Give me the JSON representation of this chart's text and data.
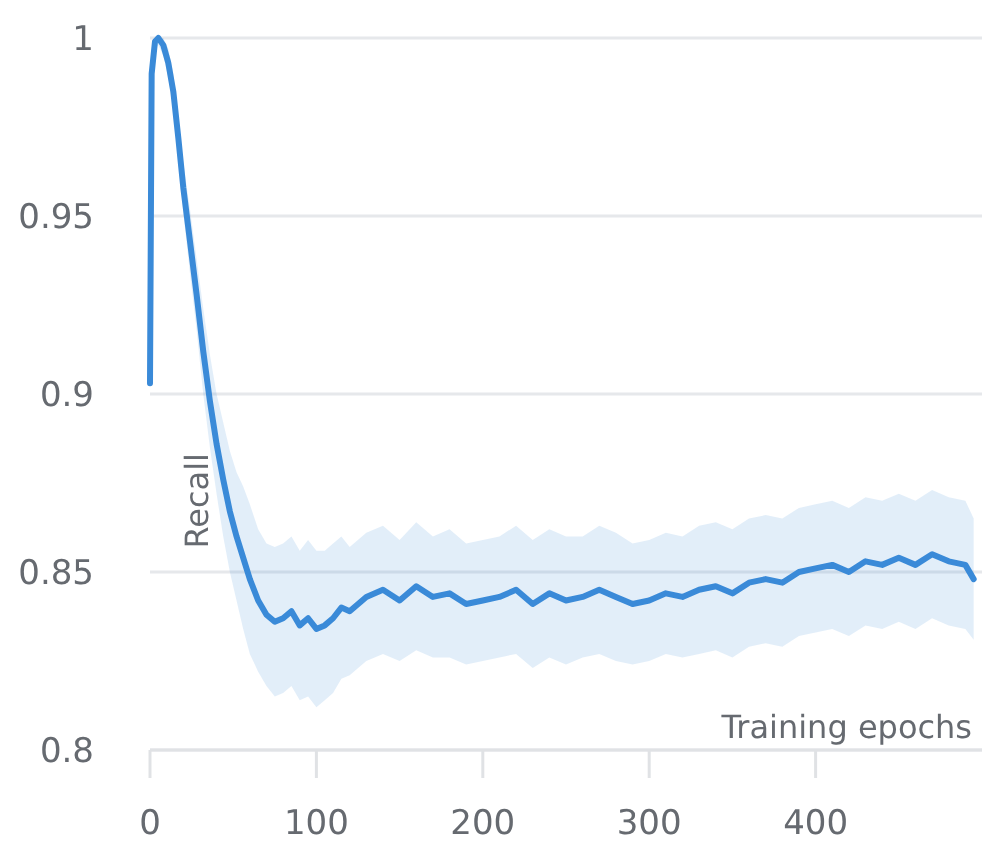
{
  "chart_data": {
    "type": "line",
    "xlabel": "Training epochs",
    "ylabel": "Recall",
    "xlim": [
      0,
      500
    ],
    "ylim": [
      0.8,
      1
    ],
    "xticks": [
      0,
      100,
      200,
      300,
      400
    ],
    "yticks": [
      0.8,
      0.85,
      0.9,
      0.95,
      1
    ],
    "grid": "y",
    "marker": "none",
    "line_style": "solid",
    "series": [
      {
        "color": "#3a8ad8",
        "x": [
          0,
          1,
          3,
          5,
          8,
          11,
          14,
          17,
          20,
          24,
          28,
          32,
          36,
          40,
          44,
          48,
          52,
          56,
          60,
          65,
          70,
          75,
          80,
          85,
          90,
          95,
          100,
          105,
          110,
          115,
          120,
          130,
          140,
          150,
          160,
          170,
          180,
          190,
          200,
          210,
          220,
          230,
          240,
          250,
          260,
          270,
          280,
          290,
          300,
          310,
          320,
          330,
          340,
          350,
          360,
          370,
          380,
          390,
          400,
          410,
          420,
          430,
          440,
          450,
          460,
          470,
          480,
          490,
          495
        ],
        "values": [
          0.903,
          0.99,
          0.999,
          1.0,
          0.998,
          0.993,
          0.985,
          0.972,
          0.958,
          0.943,
          0.928,
          0.912,
          0.898,
          0.886,
          0.876,
          0.867,
          0.86,
          0.854,
          0.848,
          0.842,
          0.838,
          0.836,
          0.837,
          0.839,
          0.835,
          0.837,
          0.834,
          0.835,
          0.837,
          0.84,
          0.839,
          0.843,
          0.845,
          0.842,
          0.846,
          0.843,
          0.844,
          0.841,
          0.842,
          0.843,
          0.845,
          0.841,
          0.844,
          0.842,
          0.843,
          0.845,
          0.843,
          0.841,
          0.842,
          0.844,
          0.843,
          0.845,
          0.846,
          0.844,
          0.847,
          0.848,
          0.847,
          0.85,
          0.851,
          0.852,
          0.85,
          0.853,
          0.852,
          0.854,
          0.852,
          0.855,
          0.853,
          0.852,
          0.848
        ],
        "lower": [
          0.9,
          0.988,
          0.997,
          0.998,
          0.995,
          0.989,
          0.98,
          0.966,
          0.951,
          0.934,
          0.918,
          0.9,
          0.885,
          0.872,
          0.86,
          0.85,
          0.842,
          0.834,
          0.827,
          0.822,
          0.818,
          0.815,
          0.816,
          0.818,
          0.814,
          0.815,
          0.812,
          0.814,
          0.816,
          0.82,
          0.821,
          0.825,
          0.827,
          0.825,
          0.828,
          0.826,
          0.826,
          0.824,
          0.825,
          0.826,
          0.827,
          0.823,
          0.826,
          0.824,
          0.826,
          0.827,
          0.825,
          0.824,
          0.825,
          0.827,
          0.826,
          0.827,
          0.828,
          0.826,
          0.829,
          0.83,
          0.829,
          0.832,
          0.833,
          0.834,
          0.832,
          0.835,
          0.834,
          0.836,
          0.834,
          0.837,
          0.835,
          0.834,
          0.831
        ],
        "upper": [
          0.906,
          0.992,
          1.0,
          1.0,
          1.0,
          0.997,
          0.99,
          0.978,
          0.965,
          0.952,
          0.938,
          0.924,
          0.911,
          0.9,
          0.892,
          0.884,
          0.878,
          0.874,
          0.869,
          0.862,
          0.858,
          0.857,
          0.858,
          0.86,
          0.856,
          0.859,
          0.856,
          0.856,
          0.858,
          0.86,
          0.857,
          0.861,
          0.863,
          0.859,
          0.864,
          0.86,
          0.862,
          0.858,
          0.859,
          0.86,
          0.863,
          0.859,
          0.862,
          0.86,
          0.86,
          0.863,
          0.861,
          0.858,
          0.859,
          0.861,
          0.86,
          0.863,
          0.864,
          0.862,
          0.865,
          0.866,
          0.865,
          0.868,
          0.869,
          0.87,
          0.868,
          0.871,
          0.87,
          0.872,
          0.87,
          0.873,
          0.871,
          0.87,
          0.865
        ]
      }
    ]
  }
}
